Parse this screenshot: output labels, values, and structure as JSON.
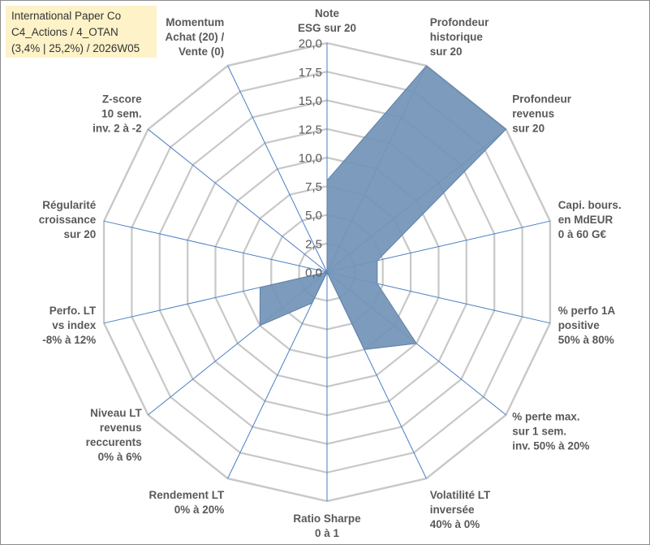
{
  "header": {
    "line1": "International Paper Co",
    "line2": "C4_Actions / 4_OTAN",
    "line3": "(3,4% | 25,2%) / 2026W05"
  },
  "chart_data": {
    "type": "radar",
    "title": "International Paper Co C4_Actions / 4_OTAN (3,4% | 25,2%) / 2026W05",
    "rmin": 0,
    "rmax": 20,
    "step": 2.5,
    "tick_labels": [
      "0,0",
      "2,5",
      "5,0",
      "7,5",
      "10,0",
      "12,5",
      "15,0",
      "17,5",
      "20,0"
    ],
    "axes": [
      [
        "Note",
        "ESG sur 20"
      ],
      [
        "Profondeur",
        "historique",
        "sur 20"
      ],
      [
        "Profondeur",
        "revenus",
        "sur 20"
      ],
      [
        "Capi. bours.",
        "en MdEUR",
        "0 à 60 G€"
      ],
      [
        "% perfo 1A",
        "positive",
        "50% à 80%"
      ],
      [
        "% perte max.",
        "sur 1 sem.",
        "inv. 50% à 20%"
      ],
      [
        "Volatilité LT",
        "inversée",
        "40% à 0%"
      ],
      [
        "Ratio Sharpe",
        "0 à 1"
      ],
      [
        "Rendement LT",
        "0% à 20%"
      ],
      [
        "Niveau LT",
        "revenus",
        "reccurents",
        "0% à 6%"
      ],
      [
        "Perfo. LT",
        "vs index",
        "-8% à 12%"
      ],
      [
        "Régularité",
        "croissance",
        "sur 20"
      ],
      [
        "Z-score",
        "10 sem.",
        "inv. 2 à -2"
      ],
      [
        "Momentum",
        "Achat (20) /",
        "Vente (0)"
      ]
    ],
    "values": [
      8.0,
      20.0,
      20.0,
      4.5,
      4.5,
      10.0,
      7.5,
      0.0,
      3.0,
      7.5,
      6.0,
      0.0,
      0.0,
      0.0
    ],
    "fill_color": "#7394b8",
    "grid_color": "#c8c8c8",
    "spoke_color": "#4a7ec4"
  }
}
